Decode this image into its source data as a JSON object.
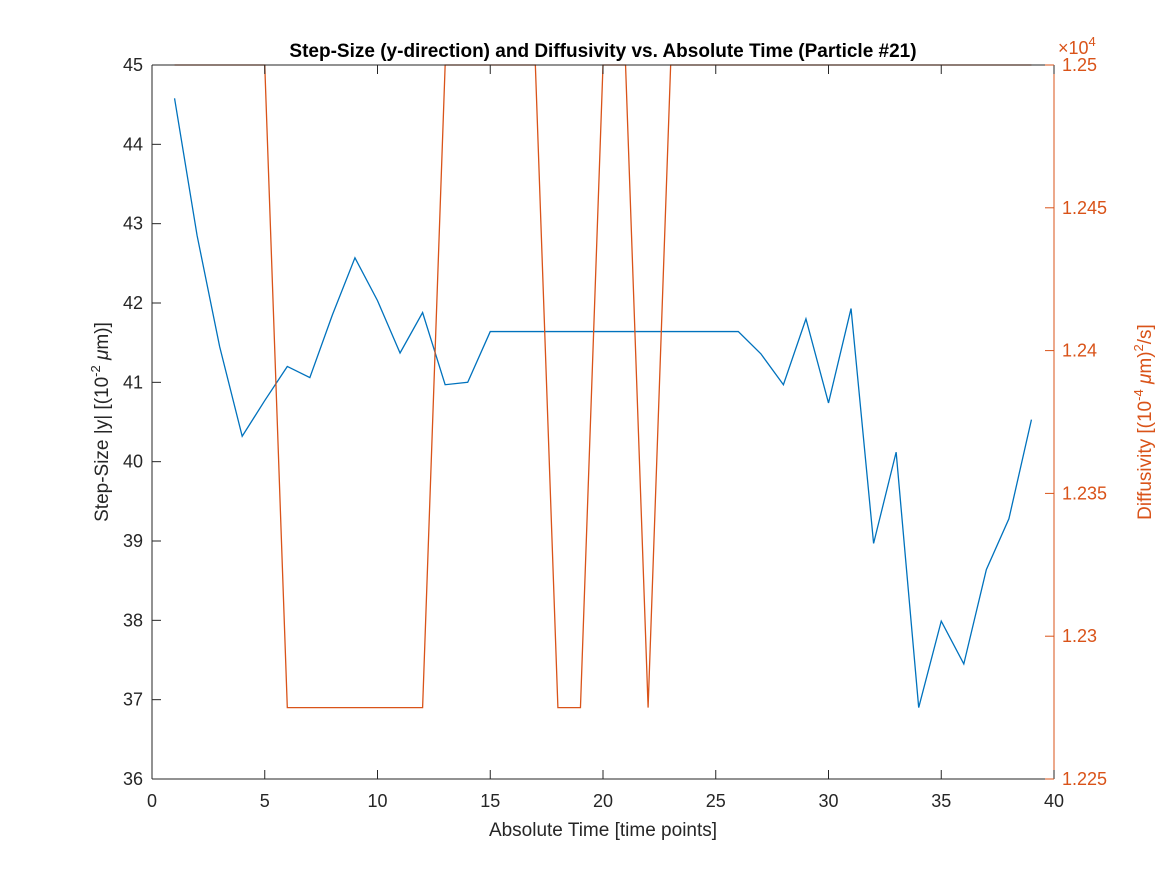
{
  "chart_data": {
    "type": "line",
    "title": "Step-Size (y-direction) and Diffusivity vs. Absolute Time (Particle #21)",
    "xlabel": "Absolute Time [time points]",
    "ylabel_left": "Step-Size |y| [(10^-2 μm)]",
    "ylabel_right": "Diffusivity [(10^-4 μm)^2/s]",
    "xlim": [
      0,
      40
    ],
    "ylim_left": [
      36,
      45
    ],
    "ylim_right": [
      1.225,
      1.25
    ],
    "right_axis_exponent": "10^4",
    "x_ticks": [
      "0",
      "5",
      "10",
      "15",
      "20",
      "25",
      "30",
      "35",
      "40"
    ],
    "y_left_ticks": [
      "36",
      "37",
      "38",
      "39",
      "40",
      "41",
      "42",
      "43",
      "44",
      "45"
    ],
    "y_right_ticks": [
      "1.225",
      "1.23",
      "1.235",
      "1.24",
      "1.245",
      "1.25"
    ],
    "colors": {
      "left": "#0072BD",
      "right": "#D95319",
      "axis": "#262626"
    },
    "series": [
      {
        "axis": "left",
        "x": [
          1,
          2,
          3,
          4,
          5,
          6,
          7,
          8,
          9,
          10,
          11,
          12,
          13,
          14,
          15,
          16,
          17,
          18,
          19,
          20,
          21,
          22,
          23,
          24,
          25,
          26,
          27,
          28,
          29,
          30,
          31,
          32,
          33,
          34,
          35,
          36,
          37,
          38,
          39
        ],
        "values": [
          44.58,
          42.85,
          41.45,
          40.32,
          40.77,
          41.2,
          41.06,
          41.85,
          42.57,
          42.03,
          41.37,
          41.88,
          40.97,
          41.0,
          41.64,
          41.64,
          41.64,
          41.64,
          41.64,
          41.64,
          41.64,
          41.64,
          41.64,
          41.64,
          41.64,
          41.64,
          41.36,
          40.97,
          41.8,
          40.74,
          41.93,
          38.97,
          40.12,
          36.9,
          37.99,
          37.45,
          38.64,
          39.28,
          40.53
        ]
      },
      {
        "axis": "right",
        "x": [
          1,
          2,
          3,
          4,
          5,
          6,
          7,
          8,
          9,
          10,
          11,
          12,
          13,
          14,
          15,
          16,
          17,
          18,
          19,
          20,
          21,
          22,
          23,
          24,
          25,
          26,
          27,
          28,
          29,
          30,
          31,
          32,
          33,
          34,
          35,
          36,
          37,
          38,
          39
        ],
        "values": [
          1.25,
          1.25,
          1.25,
          1.25,
          1.25,
          1.2275,
          1.2275,
          1.2275,
          1.2275,
          1.2275,
          1.2275,
          1.2275,
          1.25,
          1.25,
          1.25,
          1.25,
          1.25,
          1.2275,
          1.2275,
          1.25,
          1.25,
          1.2275,
          1.25,
          1.25,
          1.25,
          1.25,
          1.25,
          1.25,
          1.25,
          1.25,
          1.25,
          1.25,
          1.25,
          1.25,
          1.25,
          1.25,
          1.25,
          1.25,
          1.25
        ]
      }
    ]
  }
}
